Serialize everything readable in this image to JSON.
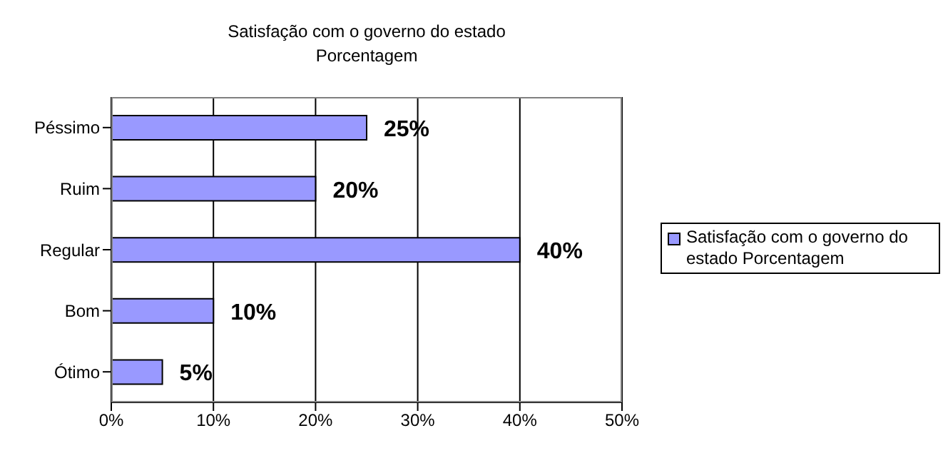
{
  "chart_data": {
    "type": "bar",
    "orientation": "horizontal",
    "title": "Satisfação com o governo do estado",
    "subtitle": "Porcentagem",
    "categories": [
      "Péssimo",
      "Ruim",
      "Regular",
      "Bom",
      "Ótimo"
    ],
    "series": [
      {
        "name": "Satisfação com o governo do estado Porcentagem",
        "color": "#9999ff",
        "values": [
          25,
          20,
          40,
          10,
          5
        ],
        "value_labels": [
          "25%",
          "20%",
          "40%",
          "10%",
          "5%"
        ]
      }
    ],
    "xlim": [
      0,
      50
    ],
    "xticks": [
      {
        "value": 0,
        "label": "0%"
      },
      {
        "value": 10,
        "label": "10%"
      },
      {
        "value": 20,
        "label": "20%"
      },
      {
        "value": 30,
        "label": "30%"
      },
      {
        "value": 40,
        "label": "40%"
      },
      {
        "value": 50,
        "label": "50%"
      }
    ],
    "grid": "x",
    "legend": "right"
  }
}
